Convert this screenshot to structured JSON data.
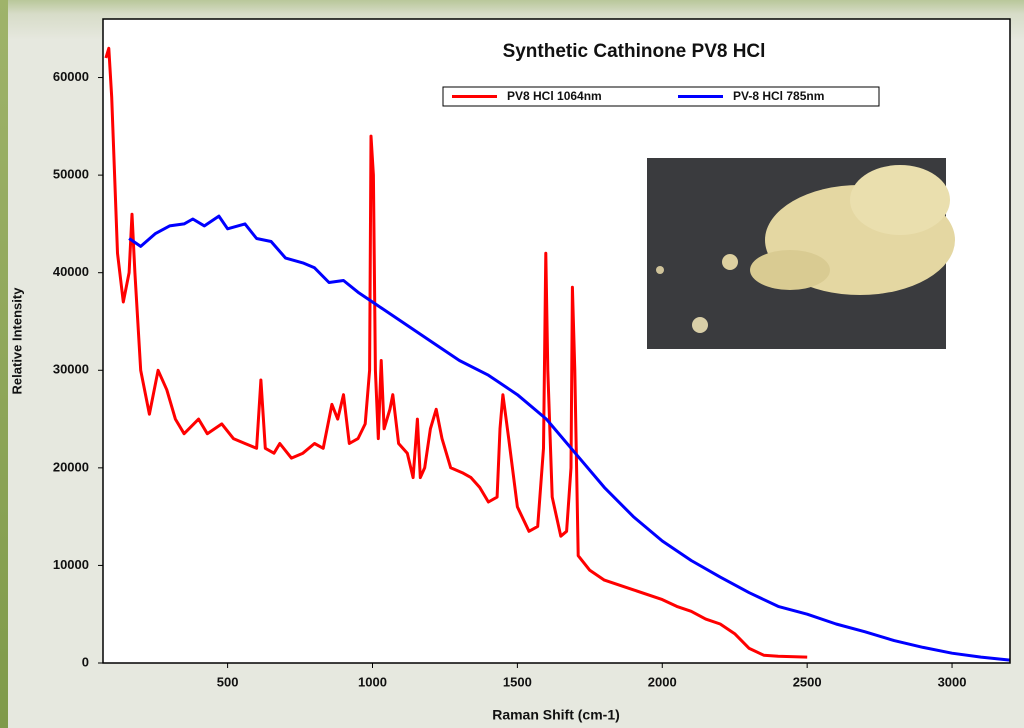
{
  "chart_data": {
    "type": "line",
    "title": "Synthetic Cathinone PV8 HCl",
    "xlabel": "Raman Shift (cm-1)",
    "ylabel": "Relative Intensity",
    "xlim": [
      70,
      3200
    ],
    "ylim": [
      0,
      66000
    ],
    "xticks": [
      500,
      1000,
      1500,
      2000,
      2500,
      3000
    ],
    "yticks": [
      0,
      10000,
      20000,
      30000,
      40000,
      50000,
      60000
    ],
    "legend": "top",
    "series": [
      {
        "name": "PV8 HCl 1064nm",
        "color": "#ff0000",
        "x": [
          80,
          90,
          100,
          120,
          140,
          160,
          170,
          180,
          200,
          230,
          260,
          290,
          320,
          350,
          400,
          430,
          480,
          520,
          560,
          600,
          615,
          630,
          660,
          680,
          720,
          760,
          800,
          830,
          860,
          880,
          900,
          920,
          950,
          975,
          990,
          995,
          1003,
          1010,
          1020,
          1030,
          1040,
          1060,
          1070,
          1090,
          1120,
          1140,
          1155,
          1165,
          1180,
          1200,
          1220,
          1240,
          1270,
          1310,
          1340,
          1370,
          1400,
          1430,
          1440,
          1450,
          1470,
          1500,
          1540,
          1570,
          1590,
          1598,
          1605,
          1620,
          1650,
          1670,
          1685,
          1690,
          1698,
          1710,
          1750,
          1800,
          1900,
          2000,
          2050,
          2100,
          2150,
          2200,
          2250,
          2300,
          2350,
          2400,
          2500
        ],
        "values": [
          62000,
          63000,
          58000,
          42000,
          37000,
          40000,
          46000,
          40000,
          30000,
          25500,
          30000,
          28000,
          25000,
          23500,
          25000,
          23500,
          24500,
          23000,
          22500,
          22000,
          29000,
          22000,
          21500,
          22500,
          21000,
          21500,
          22500,
          22000,
          26500,
          25000,
          27500,
          22500,
          23000,
          24500,
          30000,
          54000,
          50000,
          30000,
          23000,
          31000,
          24000,
          26000,
          27500,
          22500,
          21500,
          19000,
          25000,
          19000,
          20000,
          24000,
          26000,
          23000,
          20000,
          19500,
          19000,
          18000,
          16500,
          17000,
          24000,
          27500,
          23000,
          16000,
          13500,
          14000,
          22000,
          42000,
          30000,
          17000,
          13000,
          13500,
          20000,
          38500,
          30000,
          11000,
          9500,
          8500,
          7500,
          6500,
          5800,
          5300,
          4500,
          4000,
          3000,
          1500,
          800,
          700,
          600
        ]
      },
      {
        "name": "PV-8 HCl 785nm",
        "color": "#0000ff",
        "x": [
          160,
          200,
          250,
          300,
          350,
          380,
          420,
          470,
          500,
          560,
          600,
          650,
          700,
          760,
          800,
          850,
          900,
          950,
          1000,
          1100,
          1200,
          1300,
          1400,
          1500,
          1600,
          1700,
          1800,
          1900,
          2000,
          2100,
          2200,
          2300,
          2400,
          2500,
          2600,
          2700,
          2800,
          2900,
          3000,
          3100,
          3200
        ],
        "values": [
          43500,
          42700,
          44000,
          44800,
          45000,
          45500,
          44800,
          45800,
          44500,
          45000,
          43500,
          43200,
          41500,
          41000,
          40500,
          39000,
          39200,
          38000,
          37000,
          35000,
          33000,
          31000,
          29500,
          27500,
          25000,
          21500,
          18000,
          15000,
          12500,
          10500,
          8800,
          7200,
          5800,
          5000,
          4000,
          3200,
          2300,
          1600,
          1000,
          600,
          300
        ]
      }
    ]
  }
}
